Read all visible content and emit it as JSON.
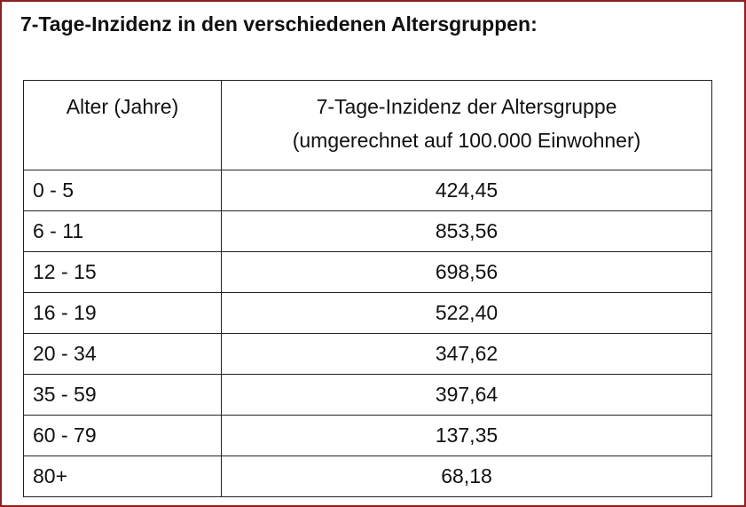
{
  "title": "7-Tage-Inzidenz in den verschiedenen Altersgruppen:",
  "table": {
    "header": {
      "age": "Alter (Jahre)",
      "incidence": [
        "7-Tage-Inzidenz der Altersgruppe",
        "(umgerechnet auf 100.000 Einwohner)"
      ]
    },
    "rows": [
      [
        "0 - 5",
        "424,45"
      ],
      [
        "6 - 11",
        "853,56"
      ],
      [
        "12 - 15",
        "698,56"
      ],
      [
        "16 - 19",
        "522,40"
      ],
      [
        "20 - 34",
        "347,62"
      ],
      [
        "35 - 59",
        "397,64"
      ],
      [
        "60 - 79",
        "137,35"
      ],
      [
        "80+",
        "68,18"
      ]
    ]
  }
}
